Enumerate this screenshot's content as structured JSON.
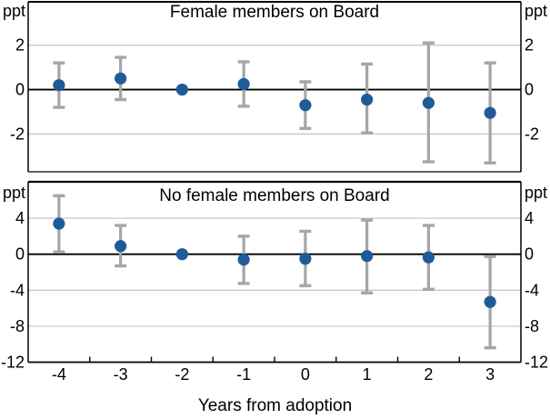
{
  "figure": {
    "xlabel": "Years from adoption",
    "x_tick_labels": [
      "-4",
      "-3",
      "-2",
      "-1",
      "0",
      "1",
      "2",
      "3"
    ],
    "colors": {
      "point": "#1f5b99",
      "error_bar": "#a6a6a6",
      "gridline": "#c8c8c8",
      "axis": "#000000",
      "background": "#ffffff"
    }
  },
  "chart_data": [
    {
      "type": "scatter",
      "title": "Female members on Board",
      "unit": "ppt",
      "x": [
        -4,
        -3,
        -2,
        -1,
        0,
        1,
        2,
        3
      ],
      "values": [
        0.2,
        0.5,
        0.0,
        0.25,
        -0.7,
        -0.45,
        -0.6,
        -1.05
      ],
      "ci_high": [
        1.2,
        1.45,
        null,
        1.25,
        0.35,
        1.15,
        2.1,
        1.2
      ],
      "ci_low": [
        -0.8,
        -0.45,
        null,
        -0.75,
        -1.75,
        -1.95,
        -3.25,
        -3.3
      ],
      "ylim": [
        -3.7,
        3.95
      ],
      "yticks": [
        2,
        0,
        -2
      ],
      "gridlines": [
        2,
        -2
      ],
      "zero_line": 0,
      "legend": "none",
      "grid": "horizontal"
    },
    {
      "type": "scatter",
      "title": "No female members on Board",
      "unit": "ppt",
      "x": [
        -4,
        -3,
        -2,
        -1,
        0,
        1,
        2,
        3
      ],
      "values": [
        3.4,
        0.9,
        0.0,
        -0.6,
        -0.5,
        -0.2,
        -0.35,
        -5.3
      ],
      "ci_high": [
        6.5,
        3.2,
        null,
        2.0,
        2.55,
        3.8,
        3.2,
        -0.25
      ],
      "ci_low": [
        0.25,
        -1.3,
        null,
        -3.25,
        -3.5,
        -4.3,
        -3.9,
        -10.4
      ],
      "ylim": [
        -12,
        8.05
      ],
      "yticks": [
        4,
        0,
        -4,
        -8,
        -12
      ],
      "gridlines": [
        4,
        -4,
        -8
      ],
      "zero_line": 0,
      "legend": "none",
      "grid": "horizontal"
    }
  ]
}
